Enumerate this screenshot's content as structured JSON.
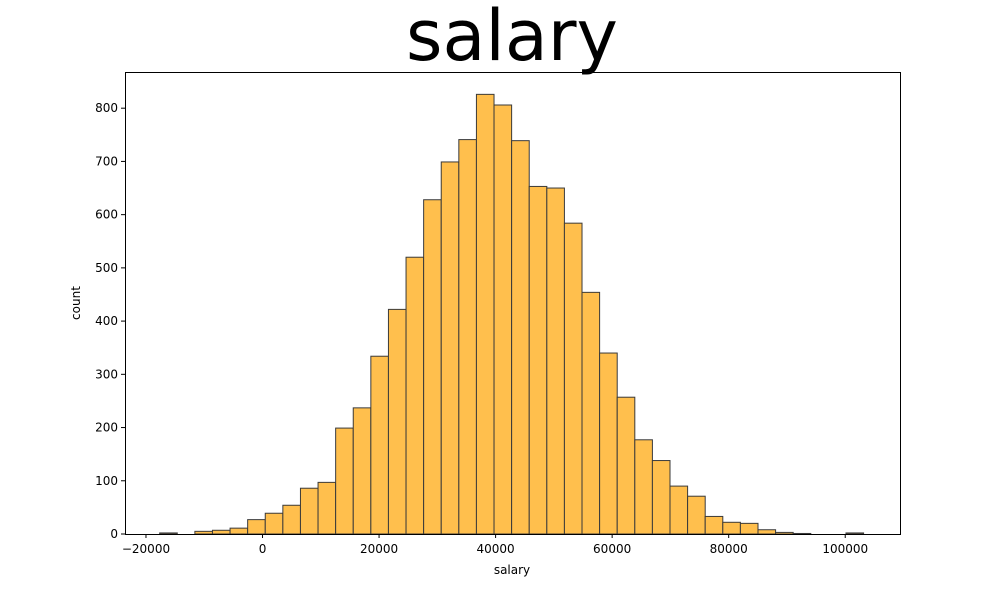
{
  "chart_data": {
    "type": "bar",
    "title": "salary",
    "xlabel": "salary",
    "ylabel": "count",
    "xlim": [
      -23600,
      109400
    ],
    "ylim": [
      0,
      868
    ],
    "x_ticks": [
      -20000,
      0,
      20000,
      40000,
      60000,
      80000,
      100000
    ],
    "x_tick_labels": [
      "−20000",
      "0",
      "20000",
      "40000",
      "60000",
      "80000",
      "100000"
    ],
    "y_ticks": [
      0,
      100,
      200,
      300,
      400,
      500,
      600,
      700,
      800
    ],
    "y_tick_labels": [
      "0",
      "100",
      "200",
      "300",
      "400",
      "500",
      "600",
      "700",
      "800"
    ],
    "bin_edges": [
      -17650,
      -14630,
      -11610,
      -8590,
      -5570,
      -2550,
      470,
      3490,
      6510,
      9530,
      12550,
      15570,
      18590,
      21610,
      24630,
      27650,
      30670,
      33690,
      36710,
      39730,
      42750,
      45770,
      48790,
      51810,
      54830,
      57850,
      60870,
      63890,
      66910,
      69930,
      72950,
      75970,
      78990,
      82010,
      85030,
      88050,
      91070,
      94090,
      97110,
      100130,
      103150
    ],
    "values": [
      2,
      0,
      5,
      7,
      11,
      27,
      39,
      54,
      86,
      97,
      199,
      237,
      334,
      422,
      520,
      628,
      699,
      741,
      826,
      806,
      739,
      653,
      650,
      584,
      454,
      340,
      257,
      177,
      138,
      90,
      71,
      33,
      22,
      20,
      8,
      3,
      1,
      0,
      0,
      2
    ],
    "bar_color": "#ffbf4d",
    "edge_color": "#3a3a3a",
    "grid": false,
    "legend": "none"
  }
}
